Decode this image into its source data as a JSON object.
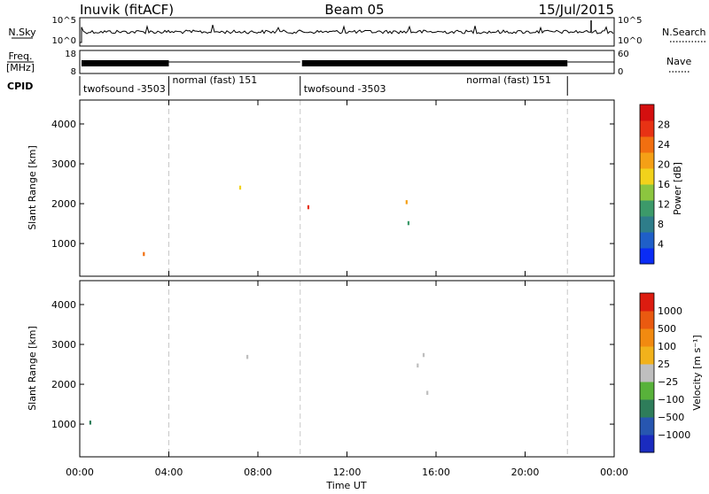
{
  "header": {
    "station": "Inuvik (fitACF)",
    "beam": "Beam 05",
    "date": "15/Jul/2015"
  },
  "colors": {
    "power_scale": [
      "#0a2cf5",
      "#1f5fc8",
      "#2e7d8a",
      "#3c9a6a",
      "#8cc63f",
      "#f2d21b",
      "#f5a016",
      "#f26f10",
      "#e83214",
      "#d40f0f"
    ],
    "velocity_scale": [
      "#1a2bbf",
      "#2756b0",
      "#2e7d5a",
      "#58b23a",
      "#bfbfbf",
      "#f2b21b",
      "#f28a10",
      "#ea5a10",
      "#dc1c10"
    ],
    "ground_scatter": "#bebebe"
  },
  "chart_data": [
    {
      "type": "line",
      "name": "noise-panel",
      "left_label": "N.Sky",
      "right_label": "N.Search",
      "left_ticks": [
        "10^5",
        "10^0"
      ],
      "right_ticks": [
        "10^5",
        "10^0"
      ]
    },
    {
      "type": "line",
      "name": "freq-panel",
      "left_label_1": "Freq.",
      "left_label_2": "[MHz]",
      "right_label": "Nave",
      "left_ticks": [
        "18",
        "8"
      ],
      "right_ticks": [
        "60",
        "0"
      ]
    },
    {
      "type": "table",
      "name": "cpid-panel",
      "label": "CPID",
      "segments": [
        {
          "start": 0.0,
          "end": 4.0,
          "text": "twofsound -3503"
        },
        {
          "start": 4.0,
          "end": 9.9,
          "text": "normal (fast) 151"
        },
        {
          "start": 9.9,
          "end": 21.9,
          "text": "twofsound -3503"
        },
        {
          "start": 17.2,
          "end": 21.9,
          "text": "normal (fast) 151"
        }
      ]
    },
    {
      "type": "heatmap",
      "name": "power-panel",
      "ylabel": "Slant Range [km]",
      "ylim": [
        180,
        4600
      ],
      "yticks": [
        "1000",
        "2000",
        "3000",
        "4000"
      ],
      "xlim": [
        0,
        24
      ],
      "colorbar_label": "Power [dB]",
      "colorbar_ticks": [
        "4",
        "8",
        "12",
        "16",
        "20",
        "24",
        "28"
      ]
    },
    {
      "type": "heatmap",
      "name": "velocity-panel",
      "ylabel": "Slant Range [km]",
      "ylim": [
        180,
        4600
      ],
      "yticks": [
        "1000",
        "2000",
        "3000",
        "4000"
      ],
      "xlim": [
        0,
        24
      ],
      "xticks": [
        "00:00",
        "04:00",
        "08:00",
        "12:00",
        "16:00",
        "20:00",
        "00:00"
      ],
      "xlabel": "Time UT",
      "colorbar_label": "Velocity [m s⁻¹]",
      "colorbar_ticks": [
        "1000",
        "500",
        "100",
        "25",
        "−25",
        "−100",
        "−500",
        "−1000"
      ]
    }
  ]
}
